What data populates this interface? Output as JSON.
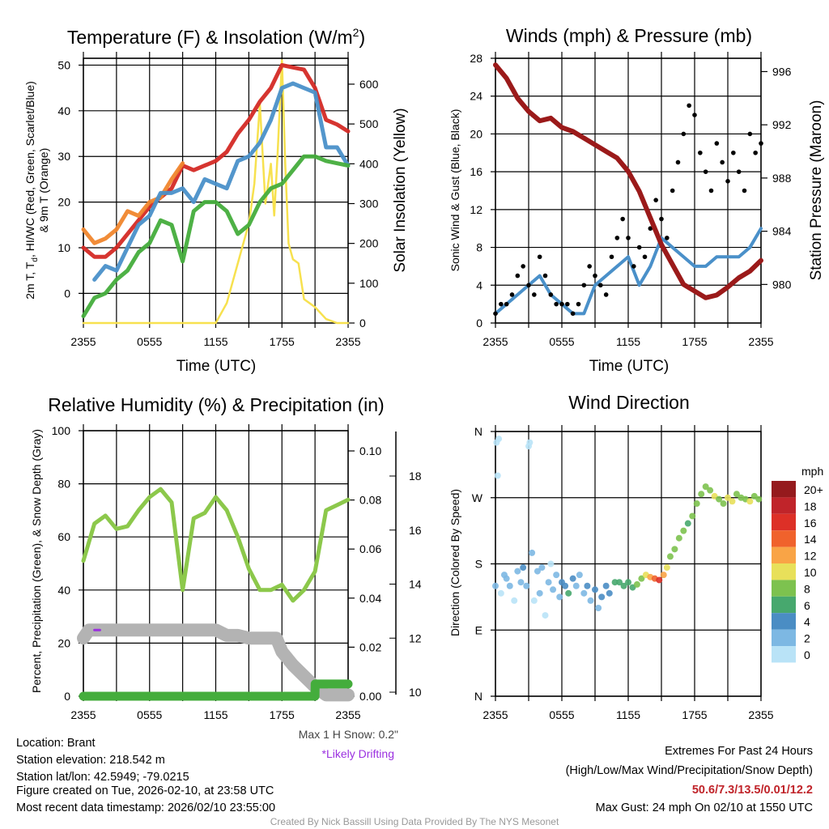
{
  "colors": {
    "temp": "#d42a25",
    "temp9m": "#f0862d",
    "hiwc": "#4a90c9",
    "dew": "#44ad3c",
    "solar": "#f7e14f",
    "wind": "#4a90c9",
    "gust": "#000000",
    "pressure": "#9b1a1a",
    "rh": "#8cc84b",
    "precip": "#44ad3c",
    "snow": "#b3b3b3",
    "drift": "#9b30e0"
  },
  "x_ticks": [
    "2355",
    "0555",
    "1155",
    "1755",
    "2355"
  ],
  "chart_data": [
    {
      "type": "line",
      "title": "Temperature (F) & Insolation (W/m",
      "title_sup": "2",
      "title_end": ")",
      "xlabel": "Time (UTC)",
      "ylabel_line1": "2m T, T",
      "ylabel_sub": "d",
      "ylabel_rest": ", HI/WC (Red, Green, Scarlet/Blue)",
      "ylabel_line2": "& 9m T (Orange)",
      "y2label": "Solar Insolation (Yellow)",
      "ylim": [
        -6.5,
        51.5
      ],
      "y2lim": [
        0,
        665
      ],
      "yticks": [
        0,
        10,
        20,
        30,
        40,
        50
      ],
      "y2ticks": [
        0,
        100,
        200,
        300,
        400,
        500,
        600
      ],
      "x_hours": [
        0,
        1,
        2,
        3,
        4,
        5,
        6,
        7,
        8,
        9,
        10,
        11,
        12,
        13,
        14,
        15,
        16,
        17,
        18,
        19,
        20,
        21,
        22,
        23,
        24
      ],
      "series": [
        {
          "name": "2m T",
          "color_key": "temp",
          "values": [
            10,
            8,
            8,
            10,
            13,
            16,
            19,
            21,
            23,
            28,
            27,
            28,
            29,
            31,
            35,
            38,
            42,
            45,
            50,
            49.5,
            49,
            45,
            38,
            37,
            35.5
          ]
        },
        {
          "name": "9m T",
          "color_key": "temp9m",
          "values": [
            14,
            11,
            12,
            14,
            18,
            17,
            20,
            21,
            25,
            28.5,
            null,
            null,
            null,
            null,
            null,
            null,
            null,
            null,
            null,
            null,
            null,
            null,
            null,
            null,
            null
          ]
        },
        {
          "name": "HI/WC",
          "color_key": "hiwc",
          "values": [
            null,
            3,
            6,
            5,
            10,
            15,
            17,
            22,
            22,
            23,
            20,
            25,
            24,
            23,
            29,
            30,
            33,
            38,
            45,
            46,
            45,
            44,
            32,
            32,
            28
          ]
        },
        {
          "name": "Td",
          "color_key": "dew",
          "values": [
            -5,
            -1,
            0,
            3,
            5,
            9,
            11,
            16,
            15,
            7,
            18,
            20,
            20,
            18,
            13,
            15,
            20,
            23,
            24,
            27,
            30,
            30,
            29,
            28.5,
            28
          ]
        }
      ],
      "solar": {
        "x": [
          0,
          12,
          13,
          13.5,
          14,
          15,
          15.5,
          16,
          16.5,
          17,
          17.3,
          17.6,
          18,
          18.3,
          18.6,
          19,
          19.5,
          20,
          21,
          22,
          23,
          24
        ],
        "values": [
          0,
          0,
          50,
          100,
          150,
          250,
          350,
          550,
          300,
          400,
          270,
          420,
          660,
          400,
          200,
          160,
          150,
          60,
          40,
          10,
          0,
          0
        ]
      }
    },
    {
      "type": "line",
      "title": "Winds (mph) & Pressure (mb)",
      "xlabel": "Time (UTC)",
      "ylabel": "Sonic Wind & Gust (Blue, Black)",
      "y2label": "Station Pressure (Maroon)",
      "ylim": [
        0,
        28
      ],
      "y2lim": [
        977.1,
        997
      ],
      "yticks": [
        0,
        4,
        8,
        12,
        16,
        20,
        24,
        28
      ],
      "y2ticks": [
        980,
        984,
        988,
        992,
        996
      ],
      "wind": {
        "values": [
          1,
          2,
          3,
          4,
          5,
          3,
          2,
          1,
          1,
          4,
          5,
          6,
          7,
          4,
          6,
          9,
          8,
          7,
          6,
          6,
          7,
          7,
          7,
          8,
          10
        ]
      },
      "gust": {
        "values": [
          1,
          2,
          2,
          3,
          5,
          6,
          4,
          3,
          7,
          5,
          3,
          2,
          2,
          2,
          1,
          2,
          4,
          6,
          5,
          4,
          3,
          7,
          9,
          11,
          9,
          6,
          8,
          7,
          10,
          13,
          11,
          9,
          14,
          17,
          20,
          23,
          22,
          18,
          16,
          14,
          19,
          17,
          15,
          18,
          16,
          14,
          20,
          18,
          19
        ]
      },
      "pressure": {
        "values": [
          996.5,
          995.5,
          994,
          993,
          992.3,
          992.5,
          991.8,
          991.5,
          991,
          990.5,
          990,
          989.5,
          988.5,
          987,
          985,
          983,
          981.5,
          980,
          979.5,
          979,
          979.2,
          979.8,
          980.5,
          981,
          981.8
        ]
      }
    },
    {
      "type": "line",
      "title": "Relative Humidity (%) & Precipitation (in)",
      "ylabel": "Percent, Precipitation (Green), & Snow Depth (Gray)",
      "ylim": [
        0,
        100
      ],
      "yticks": [
        0,
        20,
        40,
        60,
        80,
        100
      ],
      "y2ticks": [
        "0.00",
        "0.02",
        "0.04",
        "0.06",
        "0.08",
        "0.10"
      ],
      "y3ticks": [
        10,
        12,
        14,
        16,
        18
      ],
      "rh": [
        51,
        65,
        68,
        63,
        64,
        70,
        75,
        78,
        73,
        40,
        67,
        69,
        75,
        70,
        60,
        48,
        40,
        40,
        42,
        36,
        40,
        47,
        70,
        72,
        74
      ],
      "precip": {
        "x": [
          0,
          21,
          21.01,
          24
        ],
        "values": [
          0,
          0,
          0.005,
          0.005
        ]
      },
      "snow": {
        "x": [
          0,
          0.5,
          1,
          12,
          13,
          14,
          15,
          17.5,
          18,
          19,
          20,
          21,
          22,
          24
        ],
        "values": [
          12,
          12.3,
          12.3,
          12.3,
          12.1,
          12.1,
          12,
          12,
          11.5,
          11,
          10.6,
          10.2,
          9.9,
          9.9
        ]
      },
      "drift": {
        "x": [
          1,
          1.5
        ],
        "value": 12.3
      },
      "max_snow": "Max 1 H Snow: 0.2\"",
      "drift_note": "*Likely Drifting"
    },
    {
      "type": "scatter",
      "title": "Wind Direction",
      "ylabel": "Direction (Colored By Speed)",
      "yticks": [
        "N",
        "E",
        "S",
        "W",
        "N"
      ],
      "legend_title": "mph",
      "legend_labels": [
        "20+",
        "18",
        "16",
        "14",
        "12",
        "10",
        "8",
        "6",
        "4",
        "2",
        "0"
      ],
      "legend_colors": [
        "#951a1d",
        "#c0242a",
        "#dd3027",
        "#f0622c",
        "#f9a446",
        "#e8e05a",
        "#7dc24f",
        "#47a86e",
        "#4a8dc4",
        "#7db8e3",
        "#b9e3f7"
      ],
      "points": [
        [
          0,
          150,
          2
        ],
        [
          0.1,
          345,
          1
        ],
        [
          0.2,
          300,
          1
        ],
        [
          0.3,
          350,
          1
        ],
        [
          0.5,
          140,
          1
        ],
        [
          0.8,
          165,
          2
        ],
        [
          1,
          160,
          3
        ],
        [
          1.3,
          150,
          2
        ],
        [
          1.7,
          130,
          1
        ],
        [
          2,
          170,
          3
        ],
        [
          2.3,
          155,
          3
        ],
        [
          2.5,
          175,
          4
        ],
        [
          2.8,
          150,
          2
        ],
        [
          3,
          340,
          1
        ],
        [
          3.1,
          345,
          1
        ],
        [
          3.3,
          195,
          2
        ],
        [
          3.5,
          130,
          1
        ],
        [
          3.8,
          170,
          3
        ],
        [
          4,
          140,
          2
        ],
        [
          4.2,
          175,
          2
        ],
        [
          4.5,
          110,
          1
        ],
        [
          4.8,
          155,
          2
        ],
        [
          5,
          180,
          1
        ],
        [
          5.2,
          145,
          3
        ],
        [
          5.5,
          165,
          3
        ],
        [
          5.8,
          135,
          2
        ],
        [
          6,
          155,
          4
        ],
        [
          6.3,
          150,
          4
        ],
        [
          6.6,
          140,
          6
        ],
        [
          7,
          160,
          4
        ],
        [
          7.3,
          150,
          3
        ],
        [
          7.6,
          165,
          2
        ],
        [
          8,
          140,
          3
        ],
        [
          8.3,
          150,
          4
        ],
        [
          8.6,
          130,
          2
        ],
        [
          9,
          145,
          4
        ],
        [
          9.3,
          120,
          3
        ],
        [
          9.6,
          135,
          4
        ],
        [
          10,
          150,
          5
        ],
        [
          10.3,
          140,
          4
        ],
        [
          10.8,
          155,
          6
        ],
        [
          11.2,
          155,
          7
        ],
        [
          11.6,
          150,
          6
        ],
        [
          12,
          155,
          6
        ],
        [
          12.4,
          148,
          7
        ],
        [
          12.8,
          152,
          8
        ],
        [
          13.2,
          160,
          8
        ],
        [
          13.6,
          165,
          10
        ],
        [
          14,
          162,
          12
        ],
        [
          14.4,
          160,
          14
        ],
        [
          14.8,
          158,
          16
        ],
        [
          15.2,
          165,
          12
        ],
        [
          15.5,
          175,
          10
        ],
        [
          15.8,
          190,
          9
        ],
        [
          16.2,
          200,
          8
        ],
        [
          16.6,
          215,
          8
        ],
        [
          17,
          225,
          8
        ],
        [
          17.4,
          235,
          7
        ],
        [
          17.8,
          245,
          8
        ],
        [
          18.2,
          262,
          8
        ],
        [
          18.6,
          275,
          8
        ],
        [
          19,
          285,
          9
        ],
        [
          19.4,
          280,
          8
        ],
        [
          19.8,
          272,
          10
        ],
        [
          20.2,
          268,
          9
        ],
        [
          20.6,
          262,
          8
        ],
        [
          21,
          270,
          11
        ],
        [
          21.4,
          265,
          10
        ],
        [
          21.8,
          275,
          8
        ],
        [
          22.2,
          270,
          9
        ],
        [
          22.6,
          268,
          8
        ],
        [
          23,
          265,
          10
        ],
        [
          23.4,
          272,
          8
        ],
        [
          23.8,
          268,
          9
        ]
      ]
    }
  ],
  "info": {
    "location": "Location: Brant",
    "elevation": "Station elevation: 218.542 m",
    "latlon": "Station lat/lon: 42.5949; -79.0215",
    "created": "Figure created on Tue, 2026-02-10, at 23:58 UTC",
    "recent": "Most recent data timestamp: 2026/02/10 23:55:00"
  },
  "extremes": {
    "title": "Extremes For Past 24 Hours",
    "subtitle": "(High/Low/Max Wind/Precipitation/Snow Depth)",
    "values": "50.6/7.3/13.5/0.01/12.2",
    "gust": "Max Gust: 24 mph On 02/10 at 1550 UTC"
  },
  "credit": "Created By Nick Bassill Using Data Provided By The NYS Mesonet"
}
